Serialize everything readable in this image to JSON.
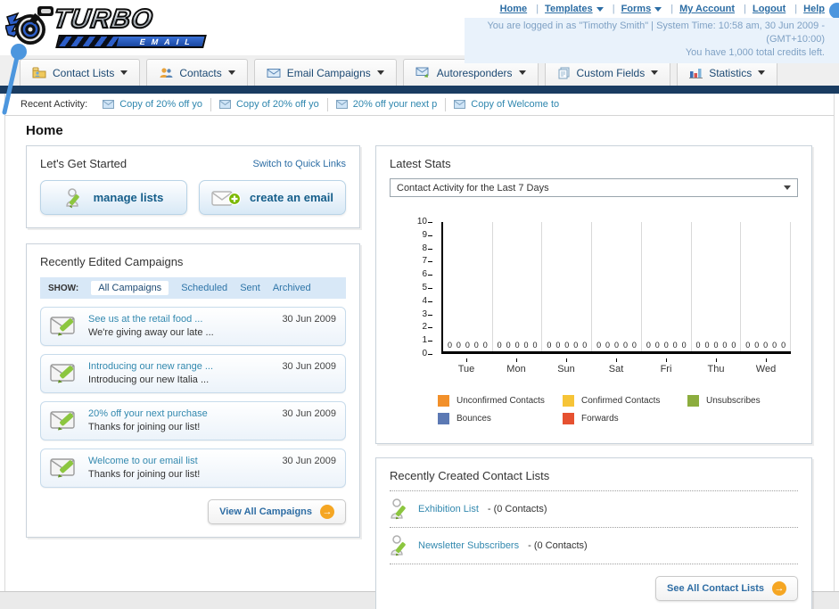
{
  "header": {
    "logo_title": "TURBO",
    "logo_subtitle": "EMAIL",
    "nav": [
      {
        "label": "Home"
      },
      {
        "label": "Templates",
        "dropdown": true
      },
      {
        "label": "Forms",
        "dropdown": true
      },
      {
        "label": "My Account"
      },
      {
        "label": "Logout"
      },
      {
        "label": "Help"
      }
    ],
    "login_info": "You are logged in as \"Timothy Smith\" | System Time: 10:58 am, 30 Jun 2009 - (GMT+10:00)",
    "credits_info": "You have 1,000 total credits left."
  },
  "tabs": [
    {
      "label": "Contact Lists"
    },
    {
      "label": "Contacts"
    },
    {
      "label": "Email Campaigns"
    },
    {
      "label": "Autoresponders"
    },
    {
      "label": "Custom Fields"
    },
    {
      "label": "Statistics"
    }
  ],
  "recent_activity": {
    "label": "Recent Activity:",
    "items": [
      {
        "text": "Copy of 20% off yo"
      },
      {
        "text": "Copy of 20% off yo"
      },
      {
        "text": "20% off your next p"
      },
      {
        "text": "Copy of Welcome to"
      }
    ]
  },
  "page_title": "Home",
  "get_started": {
    "title": "Let's Get Started",
    "switch_link": "Switch to Quick Links",
    "manage_lists_label": "manage lists",
    "create_email_label": "create an email"
  },
  "campaigns": {
    "title": "Recently Edited Campaigns",
    "show_label": "SHOW:",
    "filters": [
      {
        "label": "All Campaigns",
        "selected": true
      },
      {
        "label": "Scheduled",
        "selected": false
      },
      {
        "label": "Sent",
        "selected": false
      },
      {
        "label": "Archived",
        "selected": false
      }
    ],
    "items": [
      {
        "title": "See us at the retail food ...",
        "subtitle": "We're giving away our late ...",
        "date": "30 Jun 2009"
      },
      {
        "title": "Introducing our new range ...",
        "subtitle": "Introducing our new Italia ...",
        "date": "30 Jun 2009"
      },
      {
        "title": "20% off your next purchase",
        "subtitle": "Thanks for joining our list!",
        "date": "30 Jun 2009"
      },
      {
        "title": "Welcome to our email list",
        "subtitle": "Thanks for joining our list!",
        "date": "30 Jun 2009"
      }
    ],
    "view_all_label": "View All Campaigns"
  },
  "stats": {
    "title": "Latest Stats",
    "dropdown_value": "Contact Activity for the Last 7 Days",
    "legend": [
      {
        "label": "Unconfirmed Contacts",
        "color": "#F2902A"
      },
      {
        "label": "Confirmed Contacts",
        "color": "#F6C437"
      },
      {
        "label": "Unsubscribes",
        "color": "#8CAD3E"
      },
      {
        "label": "Bounces",
        "color": "#5C79B4"
      },
      {
        "label": "Forwards",
        "color": "#E65130"
      }
    ]
  },
  "chart_data": {
    "type": "bar",
    "title": "Contact Activity for the Last 7 Days",
    "categories": [
      "Tue",
      "Mon",
      "Sun",
      "Sat",
      "Fri",
      "Thu",
      "Wed"
    ],
    "series": [
      {
        "name": "Unconfirmed Contacts",
        "color": "#F2902A",
        "values": [
          0,
          0,
          0,
          0,
          0,
          0,
          0
        ]
      },
      {
        "name": "Confirmed Contacts",
        "color": "#F6C437",
        "values": [
          0,
          0,
          0,
          0,
          0,
          0,
          0
        ]
      },
      {
        "name": "Unsubscribes",
        "color": "#8CAD3E",
        "values": [
          0,
          0,
          0,
          0,
          0,
          0,
          0
        ]
      },
      {
        "name": "Bounces",
        "color": "#5C79B4",
        "values": [
          0,
          0,
          0,
          0,
          0,
          0,
          0
        ]
      },
      {
        "name": "Forwards",
        "color": "#E65130",
        "values": [
          0,
          0,
          0,
          0,
          0,
          0,
          0
        ]
      }
    ],
    "ylim": [
      0,
      10
    ],
    "yticks": [
      0,
      1,
      2,
      3,
      4,
      5,
      6,
      7,
      8,
      9,
      10
    ],
    "grid": "vertical",
    "legend_position": "bottom",
    "value_labels_shown": true
  },
  "contact_lists": {
    "title": "Recently Created Contact Lists",
    "items": [
      {
        "name": "Exhibition List",
        "detail": "- (0 Contacts)"
      },
      {
        "name": "Newsletter Subscribers",
        "detail": "- (0 Contacts)"
      }
    ],
    "see_all_label": "See All Contact Lists"
  },
  "colors": {
    "navy_bar": "#1A3C61",
    "link_blue": "#2C6DA4",
    "teal_link": "#3389AF",
    "accent_orange": "#F5A623",
    "info_bg": "#E9F2FB"
  }
}
